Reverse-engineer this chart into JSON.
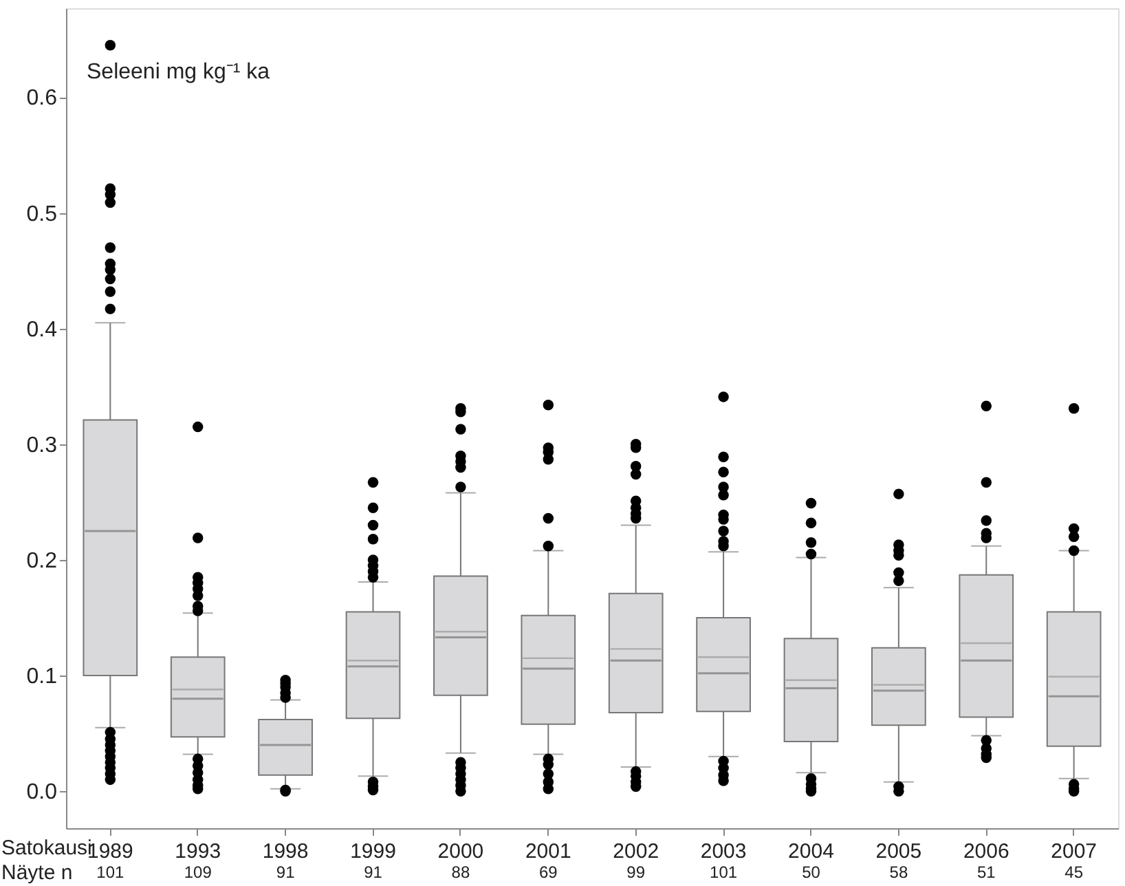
{
  "chart_data": {
    "type": "box",
    "ylabel": "Seleeni mg kg⁻¹ ka",
    "xlabel": "Satokausi",
    "categories": [
      "1989",
      "1993",
      "1998",
      "1999",
      "2000",
      "2001",
      "2002",
      "2003",
      "2004",
      "2005",
      "2006",
      "2007"
    ],
    "series": [
      {
        "color": "#d9d9db",
        "boxes": [
          {
            "low": 0.055,
            "q1": 0.1,
            "median": 0.225,
            "q3": 0.321,
            "high": 0.405,
            "outliers": [
              0.645,
              0.521,
              0.516,
              0.509,
              0.47,
              0.456,
              0.451,
              0.443,
              0.432,
              0.417,
              0.051,
              0.045,
              0.04,
              0.035,
              0.03,
              0.025,
              0.02,
              0.015,
              0.01
            ]
          },
          {
            "low": 0.032,
            "q1": 0.047,
            "median": 0.08,
            "mean": 0.088,
            "q3": 0.116,
            "high": 0.154,
            "outliers": [
              0.315,
              0.219,
              0.185,
              0.18,
              0.175,
              0.169,
              0.16,
              0.156,
              0.028,
              0.022,
              0.016,
              0.01,
              0.005,
              0.002
            ]
          },
          {
            "low": 0.002,
            "q1": 0.014,
            "median": 0.04,
            "q3": 0.062,
            "high": 0.079,
            "outliers": [
              0.096,
              0.093,
              0.09,
              0.085,
              0.081,
              0.001,
              0.0
            ]
          },
          {
            "low": 0.013,
            "q1": 0.063,
            "median": 0.108,
            "mean": 0.113,
            "q3": 0.155,
            "high": 0.181,
            "outliers": [
              0.267,
              0.245,
              0.23,
              0.218,
              0.2,
              0.195,
              0.19,
              0.185,
              0.008,
              0.004,
              0.001
            ]
          },
          {
            "low": 0.033,
            "q1": 0.083,
            "median": 0.133,
            "mean": 0.138,
            "q3": 0.186,
            "high": 0.258,
            "outliers": [
              0.331,
              0.328,
              0.313,
              0.29,
              0.285,
              0.28,
              0.263,
              0.025,
              0.02,
              0.015,
              0.01,
              0.005,
              0.0
            ]
          },
          {
            "low": 0.032,
            "q1": 0.058,
            "median": 0.106,
            "mean": 0.115,
            "q3": 0.152,
            "high": 0.208,
            "outliers": [
              0.334,
              0.297,
              0.293,
              0.287,
              0.236,
              0.212,
              0.028,
              0.023,
              0.015,
              0.008,
              0.002
            ]
          },
          {
            "low": 0.021,
            "q1": 0.068,
            "median": 0.113,
            "mean": 0.123,
            "q3": 0.171,
            "high": 0.23,
            "outliers": [
              0.3,
              0.297,
              0.281,
              0.274,
              0.251,
              0.245,
              0.24,
              0.236,
              0.017,
              0.013,
              0.008,
              0.004
            ]
          },
          {
            "low": 0.03,
            "q1": 0.069,
            "median": 0.102,
            "mean": 0.116,
            "q3": 0.15,
            "high": 0.207,
            "outliers": [
              0.341,
              0.289,
              0.276,
              0.263,
              0.256,
              0.239,
              0.235,
              0.225,
              0.216,
              0.212,
              0.026,
              0.02,
              0.014,
              0.009
            ]
          },
          {
            "low": 0.016,
            "q1": 0.043,
            "median": 0.089,
            "mean": 0.096,
            "q3": 0.132,
            "high": 0.202,
            "outliers": [
              0.249,
              0.232,
              0.215,
              0.205,
              0.011,
              0.006,
              0.002,
              0.0
            ]
          },
          {
            "low": 0.008,
            "q1": 0.057,
            "median": 0.087,
            "mean": 0.092,
            "q3": 0.124,
            "high": 0.176,
            "outliers": [
              0.257,
              0.213,
              0.208,
              0.204,
              0.189,
              0.182,
              0.004,
              0.0
            ]
          },
          {
            "low": 0.048,
            "q1": 0.064,
            "median": 0.113,
            "mean": 0.128,
            "q3": 0.187,
            "high": 0.212,
            "outliers": [
              0.333,
              0.267,
              0.234,
              0.223,
              0.219,
              0.044,
              0.037,
              0.032,
              0.029
            ]
          },
          {
            "low": 0.011,
            "q1": 0.039,
            "median": 0.082,
            "mean": 0.099,
            "q3": 0.155,
            "high": 0.208,
            "outliers": [
              0.331,
              0.227,
              0.22,
              0.208,
              0.006,
              0.002,
              0.0
            ]
          }
        ]
      }
    ],
    "ylim": [
      -0.032,
      0.677
    ],
    "yticks": [
      {
        "value": 0,
        "label": "0.0"
      },
      {
        "value": 0.1,
        "label": "0.1"
      },
      {
        "value": 0.2,
        "label": "0.2"
      },
      {
        "value": 0.3,
        "label": "0.3"
      },
      {
        "value": 0.4,
        "label": "0.4"
      },
      {
        "value": 0.5,
        "label": "0.5"
      },
      {
        "value": 0.6,
        "label": "0.6"
      }
    ],
    "grid": false,
    "annotations": [
      "Näyte n",
      "101",
      "109",
      "91",
      "91",
      "88",
      "69",
      "99",
      "101",
      "50",
      "58",
      "51",
      "45"
    ]
  }
}
